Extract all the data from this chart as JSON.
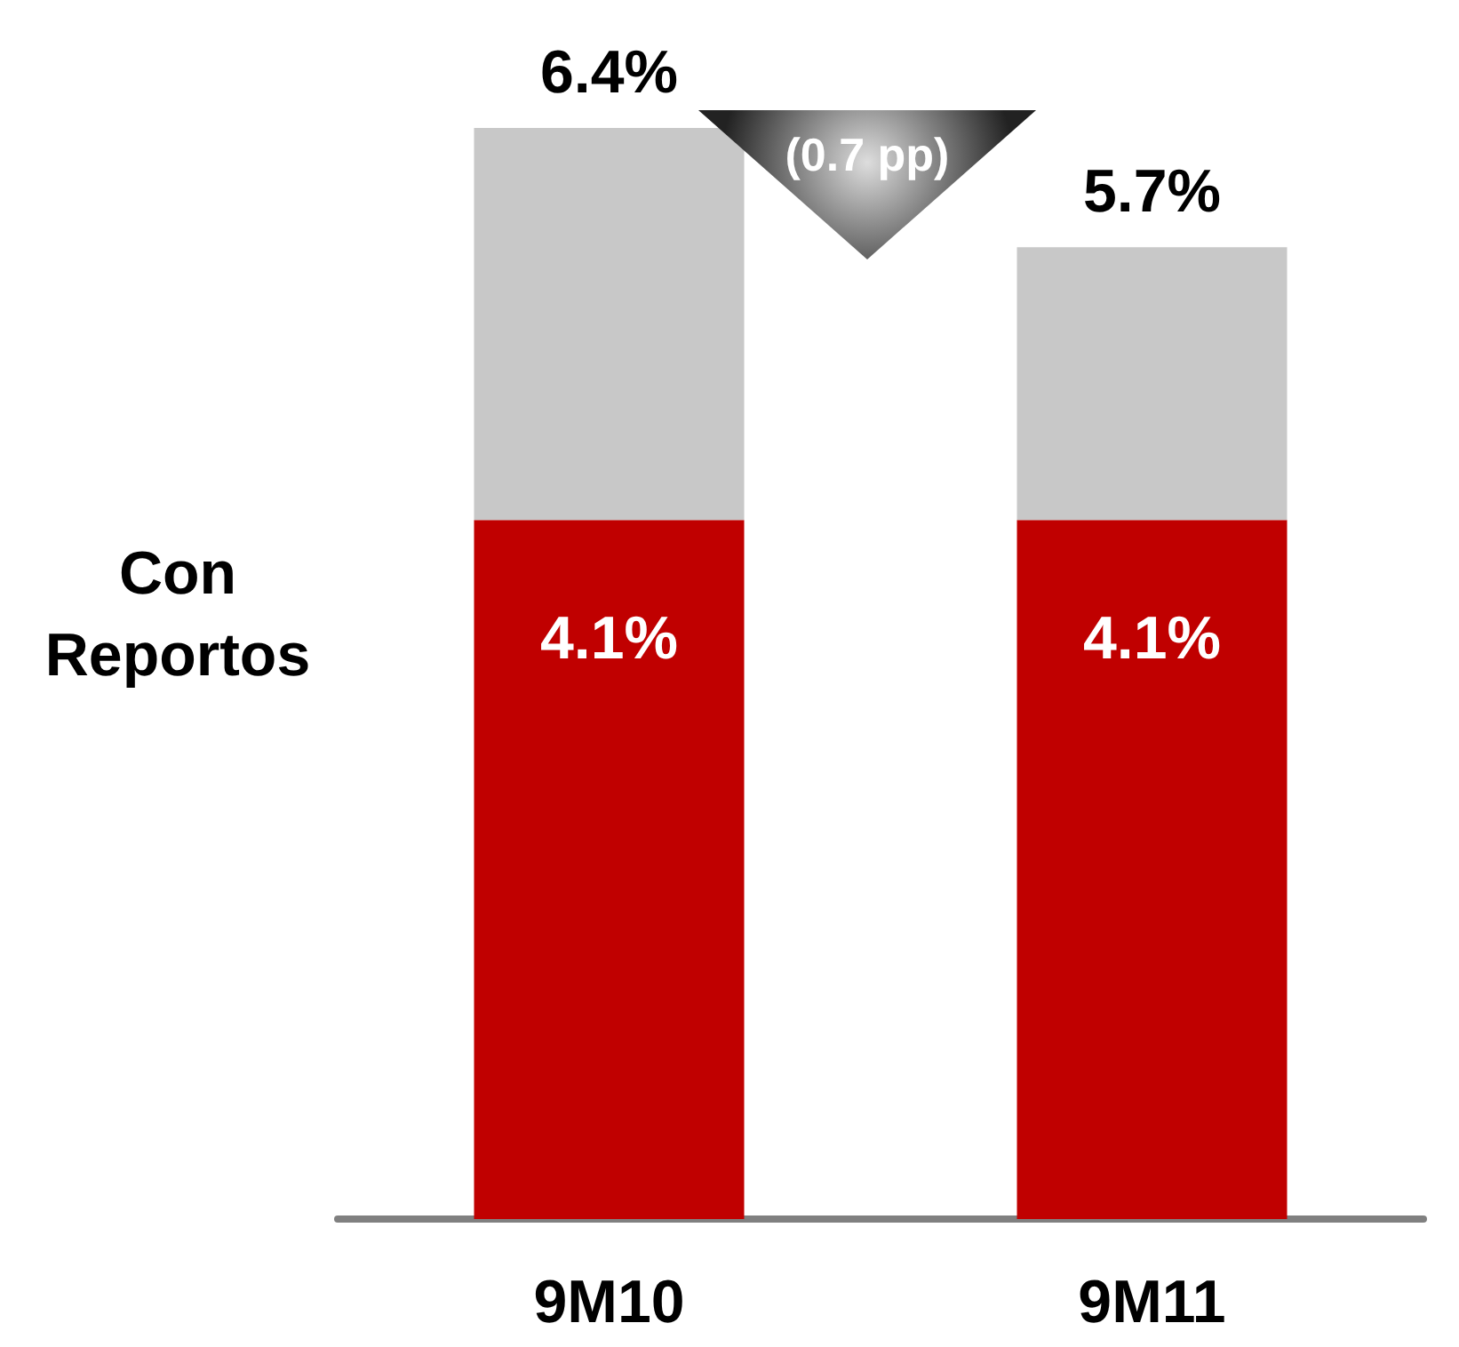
{
  "chart_data": {
    "type": "bar",
    "stacked": true,
    "categories": [
      "9M10",
      "9M11"
    ],
    "series": [
      {
        "color": "#c00000",
        "values": [
          4.1,
          4.1
        ],
        "value_labels": [
          "4.1%",
          "4.1%"
        ]
      },
      {
        "color": "#c8c8c8",
        "values": [
          2.3,
          1.6
        ]
      }
    ],
    "totals": [
      "6.4%",
      "5.7%"
    ],
    "annotations": [
      "Con Reportos",
      "(0.7 pp)"
    ]
  }
}
